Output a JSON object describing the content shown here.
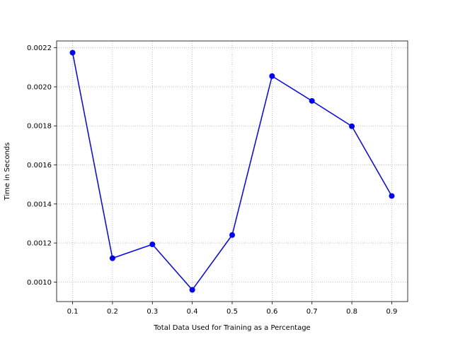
{
  "chart_data": {
    "type": "line",
    "title": "",
    "xlabel": "Total Data Used for Training as a Percentage",
    "ylabel": "Time in Seconds",
    "xlim": [
      0.06,
      0.94
    ],
    "ylim": [
      0.0009,
      0.002235
    ],
    "grid": true,
    "legend": "none",
    "x_ticks": [
      0.1,
      0.2,
      0.3,
      0.4,
      0.5,
      0.6,
      0.7,
      0.8,
      0.9
    ],
    "x_tick_labels": [
      "0.1",
      "0.2",
      "0.3",
      "0.4",
      "0.5",
      "0.6",
      "0.7",
      "0.8",
      "0.9"
    ],
    "y_ticks": [
      0.001,
      0.0012,
      0.0014,
      0.0016,
      0.0018,
      0.002,
      0.0022
    ],
    "y_tick_labels": [
      "0.0010",
      "0.0012",
      "0.0014",
      "0.0016",
      "0.0018",
      "0.0020",
      "0.0022"
    ],
    "series": [
      {
        "color": "#0000ff",
        "marker": "circle",
        "x": [
          0.1,
          0.2,
          0.3,
          0.4,
          0.5,
          0.6,
          0.7,
          0.8,
          0.9
        ],
        "values": [
          0.002175,
          0.001122,
          0.001193,
          0.00096,
          0.001241,
          0.002055,
          0.001928,
          0.001798,
          0.001441
        ]
      }
    ]
  }
}
